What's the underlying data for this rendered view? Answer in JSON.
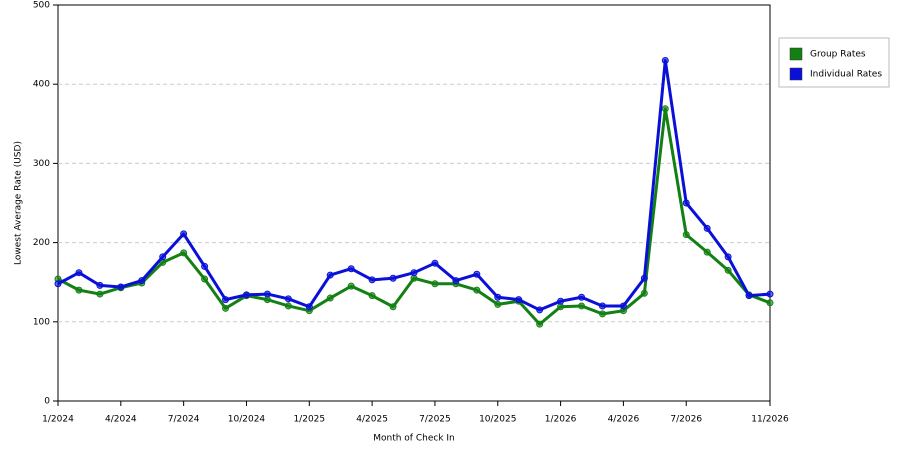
{
  "chart_data": {
    "type": "line",
    "x_label": "Month of Check In",
    "y_label": "Lowest Average Rate (USD)",
    "categories": [
      "1/2024",
      null,
      null,
      "4/2024",
      null,
      null,
      "7/2024",
      null,
      null,
      "10/2024",
      null,
      null,
      "1/2025",
      null,
      null,
      "4/2025",
      null,
      null,
      "7/2025",
      null,
      null,
      "10/2025",
      null,
      null,
      "1/2026",
      null,
      null,
      "4/2026",
      null,
      null,
      "7/2026",
      null,
      null,
      null,
      "11/2026"
    ],
    "series": [
      {
        "name": "Group Rates",
        "color": "#138013",
        "values": [
          154,
          140,
          135,
          143,
          149,
          175,
          187,
          154,
          117,
          133,
          128,
          120,
          114,
          130,
          145,
          133,
          119,
          155,
          148,
          148,
          140,
          122,
          126,
          97,
          119,
          120,
          110,
          114,
          136,
          369,
          210,
          188,
          165,
          134,
          124
        ]
      },
      {
        "name": "Individual Rates",
        "color": "#0a10d8",
        "values": [
          148,
          162,
          146,
          144,
          152,
          182,
          211,
          170,
          128,
          134,
          135,
          129,
          119,
          159,
          167,
          153,
          155,
          162,
          174,
          152,
          160,
          131,
          128,
          115,
          126,
          131,
          120,
          120,
          155,
          430,
          250,
          218,
          182,
          133,
          135
        ]
      }
    ],
    "ylim": [
      0,
      500
    ],
    "yticks": [
      0,
      100,
      200,
      300,
      400,
      500
    ],
    "grid": true,
    "legend": "right"
  }
}
